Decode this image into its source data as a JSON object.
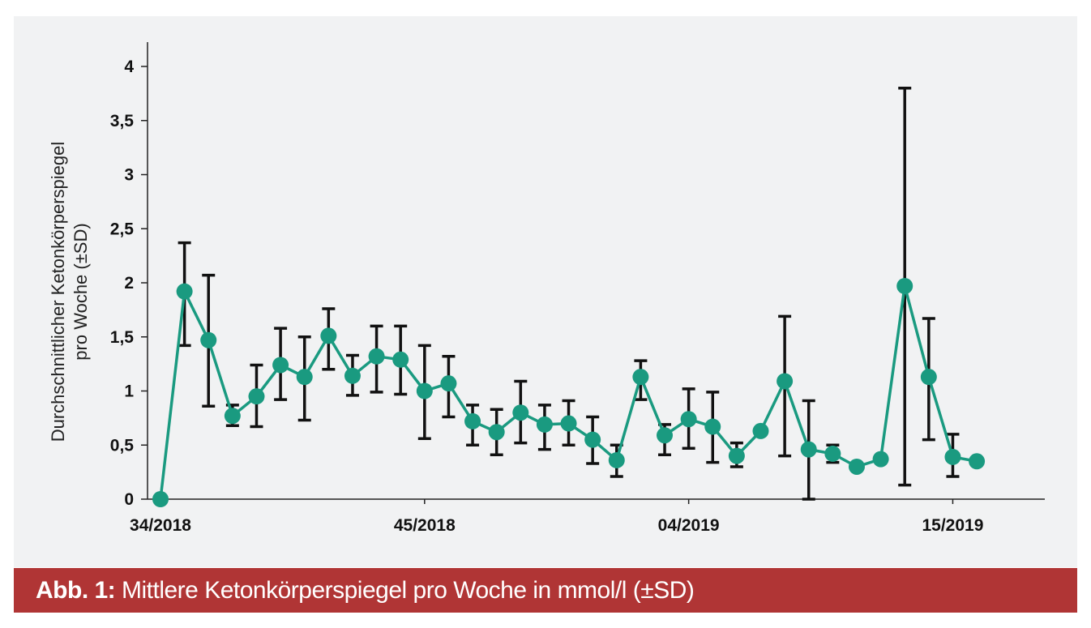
{
  "caption": {
    "label": "Abb. 1:",
    "text": " Mittlere Ketonkörperspiegel pro Woche in mmol/l (±SD)"
  },
  "chart_data": {
    "type": "line",
    "ylabel_lines": [
      "Durchschnittlicher Ketonkörperspiegel",
      "pro Woche (±SD)"
    ],
    "xlabel": "",
    "ylim": [
      0,
      4
    ],
    "yticks": [
      0,
      0.5,
      1,
      1.5,
      2,
      2.5,
      3,
      3.5,
      4
    ],
    "ytick_labels": [
      "0",
      "0,5",
      "1",
      "1,5",
      "2",
      "2,5",
      "3",
      "3,5",
      "4"
    ],
    "x_tick_labels": [
      {
        "index": 0,
        "label": "34/2018"
      },
      {
        "index": 11,
        "label": "45/2018"
      },
      {
        "index": 22,
        "label": "04/2019"
      },
      {
        "index": 33,
        "label": "15/2019"
      }
    ],
    "series_color": "#1a9a80",
    "series": [
      {
        "values": [
          0.0,
          1.92,
          1.47,
          0.77,
          0.95,
          1.24,
          1.13,
          1.51,
          1.14,
          1.32,
          1.29,
          1.0,
          1.07,
          0.72,
          0.62,
          0.8,
          0.69,
          0.7,
          0.55,
          0.36,
          1.13,
          0.59,
          0.74,
          0.67,
          0.4,
          0.63,
          1.09,
          0.46,
          0.42,
          0.3,
          0.37,
          1.97,
          1.13,
          0.39,
          0.35
        ],
        "upper": [
          null,
          2.37,
          2.07,
          0.87,
          1.24,
          1.58,
          1.5,
          1.76,
          1.33,
          1.6,
          1.6,
          1.42,
          1.32,
          0.87,
          0.83,
          1.09,
          0.87,
          0.91,
          0.76,
          0.5,
          1.28,
          0.69,
          1.02,
          0.99,
          0.52,
          null,
          1.69,
          0.91,
          0.5,
          null,
          null,
          3.8,
          1.67,
          0.6,
          null
        ],
        "lower": [
          null,
          1.42,
          0.86,
          0.68,
          0.67,
          0.92,
          0.73,
          1.2,
          0.96,
          0.99,
          0.97,
          0.56,
          0.76,
          0.5,
          0.41,
          0.52,
          0.46,
          0.5,
          0.33,
          0.21,
          0.92,
          0.41,
          0.47,
          0.34,
          0.3,
          null,
          0.4,
          0.0,
          0.34,
          null,
          null,
          0.13,
          0.55,
          0.21,
          null
        ]
      }
    ]
  }
}
